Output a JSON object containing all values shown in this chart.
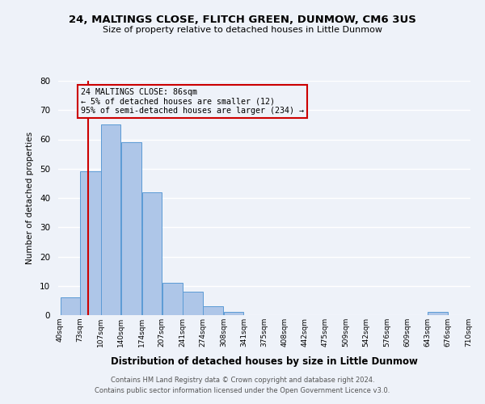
{
  "title": "24, MALTINGS CLOSE, FLITCH GREEN, DUNMOW, CM6 3US",
  "subtitle": "Size of property relative to detached houses in Little Dunmow",
  "xlabel": "Distribution of detached houses by size in Little Dunmow",
  "ylabel": "Number of detached properties",
  "bar_left_edges": [
    40,
    73,
    107,
    140,
    174,
    207,
    241,
    274,
    308,
    341,
    375,
    408,
    442,
    475,
    509,
    542,
    576,
    609,
    643,
    676
  ],
  "bar_widths": [
    33,
    34,
    33,
    34,
    33,
    34,
    33,
    34,
    33,
    34,
    33,
    34,
    33,
    34,
    33,
    34,
    33,
    34,
    33,
    34
  ],
  "bar_heights": [
    6,
    49,
    65,
    59,
    42,
    11,
    8,
    3,
    1,
    0,
    0,
    0,
    0,
    0,
    0,
    0,
    0,
    0,
    1,
    0
  ],
  "bar_color": "#aec6e8",
  "bar_edge_color": "#5b9bd5",
  "tick_labels": [
    "40sqm",
    "73sqm",
    "107sqm",
    "140sqm",
    "174sqm",
    "207sqm",
    "241sqm",
    "274sqm",
    "308sqm",
    "341sqm",
    "375sqm",
    "408sqm",
    "442sqm",
    "475sqm",
    "509sqm",
    "542sqm",
    "576sqm",
    "609sqm",
    "643sqm",
    "676sqm",
    "710sqm"
  ],
  "ylim": [
    0,
    80
  ],
  "yticks": [
    0,
    10,
    20,
    30,
    40,
    50,
    60,
    70,
    80
  ],
  "property_line_x": 86,
  "property_line_color": "#cc0000",
  "annotation_text": "24 MALTINGS CLOSE: 86sqm\n← 5% of detached houses are smaller (12)\n95% of semi-detached houses are larger (234) →",
  "annotation_box_color": "#cc0000",
  "footer_line1": "Contains HM Land Registry data © Crown copyright and database right 2024.",
  "footer_line2": "Contains public sector information licensed under the Open Government Licence v3.0.",
  "background_color": "#eef2f9",
  "grid_color": "#ffffff"
}
